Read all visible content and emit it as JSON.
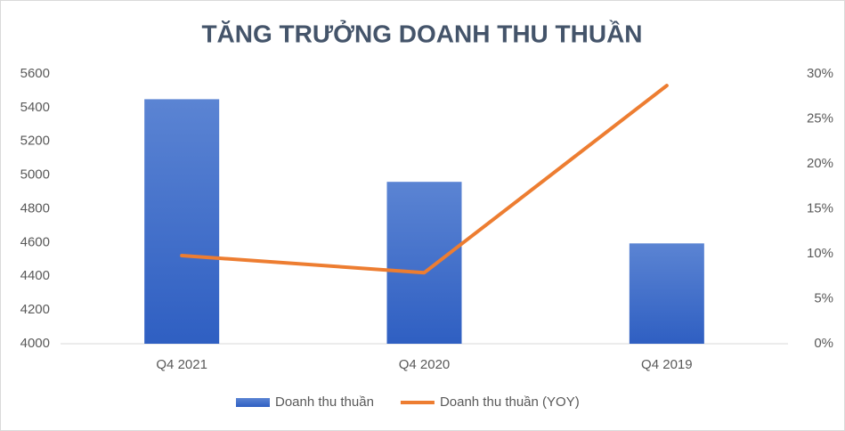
{
  "chart_data": {
    "type": "combo",
    "title": "TĂNG TRƯỞNG DOANH THU THUẦN",
    "categories": [
      "Q4 2021",
      "Q4 2020",
      "Q4 2019"
    ],
    "series": [
      {
        "name": "Doanh thu thuần",
        "type": "bar",
        "color": "#4472c4",
        "values": [
          5450,
          4960,
          4595
        ]
      },
      {
        "name": "Doanh thu thuần (YOY)",
        "type": "line",
        "axis": "y2",
        "color": "#ed7d31",
        "values": [
          9.8,
          7.9,
          28.7
        ]
      }
    ],
    "ylim": [
      4000,
      5600
    ],
    "yticks": [
      4000,
      4200,
      4400,
      4600,
      4800,
      5000,
      5200,
      5400,
      5600
    ],
    "y2lim": [
      0,
      30
    ],
    "y2ticks": [
      {
        "value": 0,
        "label": "0%"
      },
      {
        "value": 5,
        "label": "5%"
      },
      {
        "value": 10,
        "label": "10%"
      },
      {
        "value": 15,
        "label": "15%"
      },
      {
        "value": 20,
        "label": "20%"
      },
      {
        "value": 25,
        "label": "25%"
      },
      {
        "value": 30,
        "label": "30%"
      }
    ],
    "grid": false,
    "legend": "bottom"
  }
}
